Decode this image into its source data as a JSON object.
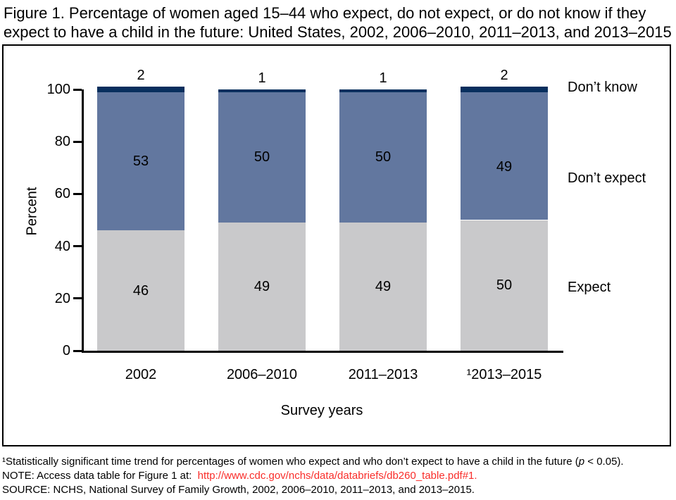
{
  "title_line1": "Figure 1. Percentage of women aged 15–44 who expect, do not expect, or do not know if they",
  "title_line2": "expect to have a child in the future: United States, 2002, 2006–2010, 2011–2013, and 2013–2015",
  "chart_data": {
    "type": "bar",
    "stacked": true,
    "title": "Percentage of women aged 15–44 who expect, do not expect, or do not know if they expect to have a child in the future",
    "categories": [
      "2002",
      "2006–2010",
      "2011–2013",
      "¹2013–2015"
    ],
    "series": [
      {
        "name": "Expect",
        "color": "#c9c9cb",
        "values": [
          46,
          49,
          49,
          50
        ]
      },
      {
        "name": "Don’t expect",
        "color": "#62779f",
        "values": [
          53,
          50,
          50,
          49
        ]
      },
      {
        "name": "Don’t know",
        "color": "#082f5e",
        "values": [
          2,
          1,
          1,
          2
        ]
      }
    ],
    "xlabel": "Survey years",
    "ylabel": "Percent",
    "ylim": [
      0,
      100
    ],
    "yticks": [
      0,
      20,
      40,
      60,
      80,
      100
    ],
    "grid": false,
    "legend_position": "right"
  },
  "colors": {
    "expect": "#c9c9cb",
    "dont_expect": "#62779f",
    "dont_know": "#082f5e",
    "link_red": "#f92d2a",
    "axis": "#000000"
  },
  "footnotes": {
    "significance": {
      "pre": "¹Statistically significant time trend for percentages of women who expect and who don’t expect to have a child in the future (",
      "p": "p",
      "post": " < 0.05)."
    },
    "note": {
      "prefix": "NOTE: Access data table for Figure 1 at:  ",
      "link": "http://www.cdc.gov/nchs/data/databriefs/db260_table.pdf#1",
      "suffix": "."
    },
    "source": "SOURCE: NCHS, National Survey of Family Growth, 2002, 2006–2010, 2011–2013, and 2013–2015."
  }
}
